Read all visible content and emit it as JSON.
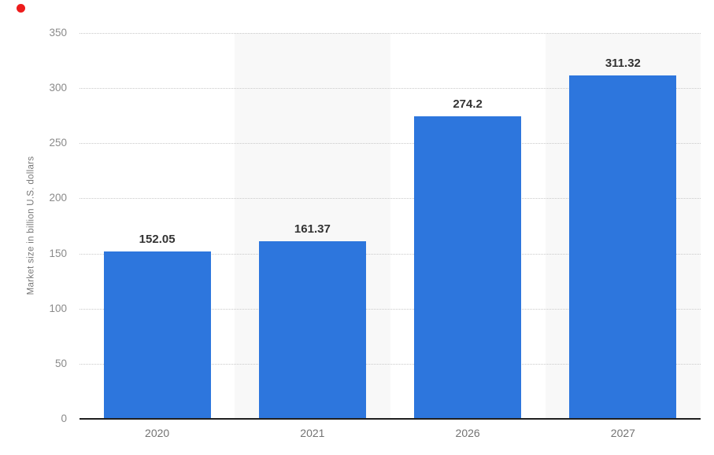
{
  "marker": {
    "name": "red-dot",
    "color": "#ed1c1c"
  },
  "chart_data": {
    "type": "bar",
    "title": "",
    "categories": [
      "2020",
      "2021",
      "2026",
      "2027"
    ],
    "values": [
      152.05,
      161.37,
      274.2,
      311.32
    ],
    "value_labels": [
      "152.05",
      "161.37",
      "274.2",
      "311.32"
    ],
    "xlabel": "",
    "ylabel": "Market size in billion U.S. dollars",
    "yticks": [
      0,
      50,
      100,
      150,
      200,
      250,
      300,
      350
    ],
    "ylim": [
      0,
      350
    ],
    "legend": "none",
    "grid": "horizontal-dotted",
    "background_bands": "alternating vertical column stripes (white / light gray)",
    "colors": {
      "bar": "#2d76dd",
      "grid": "#c9c9c9",
      "axis": "#1f1f1f",
      "band": "#f8f8f8",
      "tick_text": "#8a8a8a",
      "x_tick_text": "#737373",
      "value_text": "#333333",
      "axis_title_text": "#777777"
    }
  }
}
